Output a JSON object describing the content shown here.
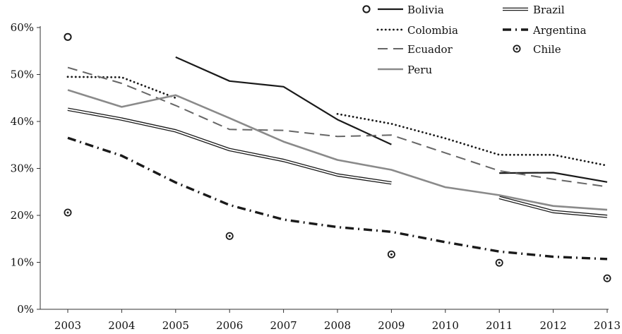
{
  "chart_data": {
    "type": "line",
    "x": [
      "2003",
      "2004",
      "2005",
      "2006",
      "2007",
      "2008",
      "2009",
      "2010",
      "2011",
      "2012",
      "2013"
    ],
    "ylim": [
      0,
      60
    ],
    "y_ticks": [
      {
        "value": 0,
        "label": "0%"
      },
      {
        "value": 10,
        "label": "10%"
      },
      {
        "value": 20,
        "label": "20%"
      },
      {
        "value": 30,
        "label": "30%"
      },
      {
        "value": 40,
        "label": "40%"
      },
      {
        "value": 50,
        "label": "50%"
      },
      {
        "value": 60,
        "label": "60%"
      }
    ],
    "grid": false,
    "legend_position": "top-right",
    "series": [
      {
        "name": "Bolivia",
        "style": "solid",
        "color": "#1a1a1a",
        "values": [
          58.0,
          null,
          53.7,
          48.6,
          47.4,
          40.4,
          35.1,
          null,
          29.0,
          29.1,
          27.1
        ]
      },
      {
        "name": "Brazil",
        "style": "double",
        "color": "#1a1a1a",
        "values": [
          42.6,
          40.5,
          38.0,
          34.0,
          31.7,
          28.6,
          26.9,
          null,
          23.8,
          20.8,
          19.8
        ]
      },
      {
        "name": "Colombia",
        "style": "dotted",
        "color": "#1a1a1a",
        "values": [
          49.5,
          49.4,
          45.0,
          null,
          null,
          41.6,
          39.5,
          36.4,
          32.9,
          32.9,
          30.6
        ]
      },
      {
        "name": "Argentina",
        "style": "dashdot",
        "color": "#1a1a1a",
        "values": [
          36.5,
          32.7,
          27.0,
          22.2,
          19.1,
          17.5,
          16.5,
          14.3,
          12.3,
          11.2,
          10.7
        ]
      },
      {
        "name": "Ecuador",
        "style": "dashed",
        "color": "#666666",
        "values": [
          51.5,
          48.1,
          43.4,
          38.3,
          38.1,
          36.8,
          37.1,
          33.3,
          29.5,
          27.7,
          26.1
        ]
      },
      {
        "name": "Chile",
        "style": "markers",
        "color": "#1a1a1a",
        "values": [
          20.6,
          null,
          null,
          15.6,
          null,
          null,
          11.7,
          null,
          9.9,
          null,
          6.6
        ]
      },
      {
        "name": "Peru",
        "style": "gray",
        "color": "#8a8a8a",
        "values": [
          46.7,
          43.1,
          45.6,
          40.7,
          35.7,
          31.8,
          29.7,
          26.0,
          24.3,
          22.0,
          21.2
        ]
      }
    ]
  }
}
